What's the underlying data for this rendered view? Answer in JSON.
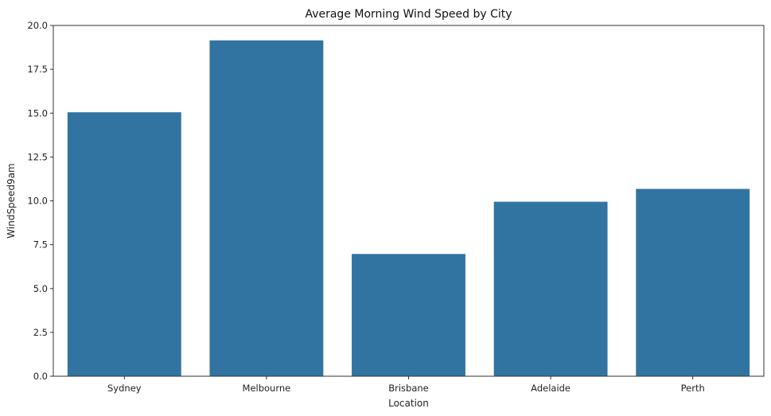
{
  "chart_data": {
    "type": "bar",
    "title": "Average Morning Wind Speed by City",
    "xlabel": "Location",
    "ylabel": "WindSpeed9am",
    "categories": [
      "Sydney",
      "Melbourne",
      "Brisbane",
      "Adelaide",
      "Perth"
    ],
    "values": [
      15.05,
      19.15,
      6.97,
      9.95,
      10.68
    ],
    "ylim": [
      0,
      20
    ],
    "yticks": [
      "0.0",
      "2.5",
      "5.0",
      "7.5",
      "10.0",
      "12.5",
      "15.0",
      "17.5",
      "20.0"
    ],
    "bar_color": "#3274a1",
    "grid": false,
    "legend": false
  }
}
